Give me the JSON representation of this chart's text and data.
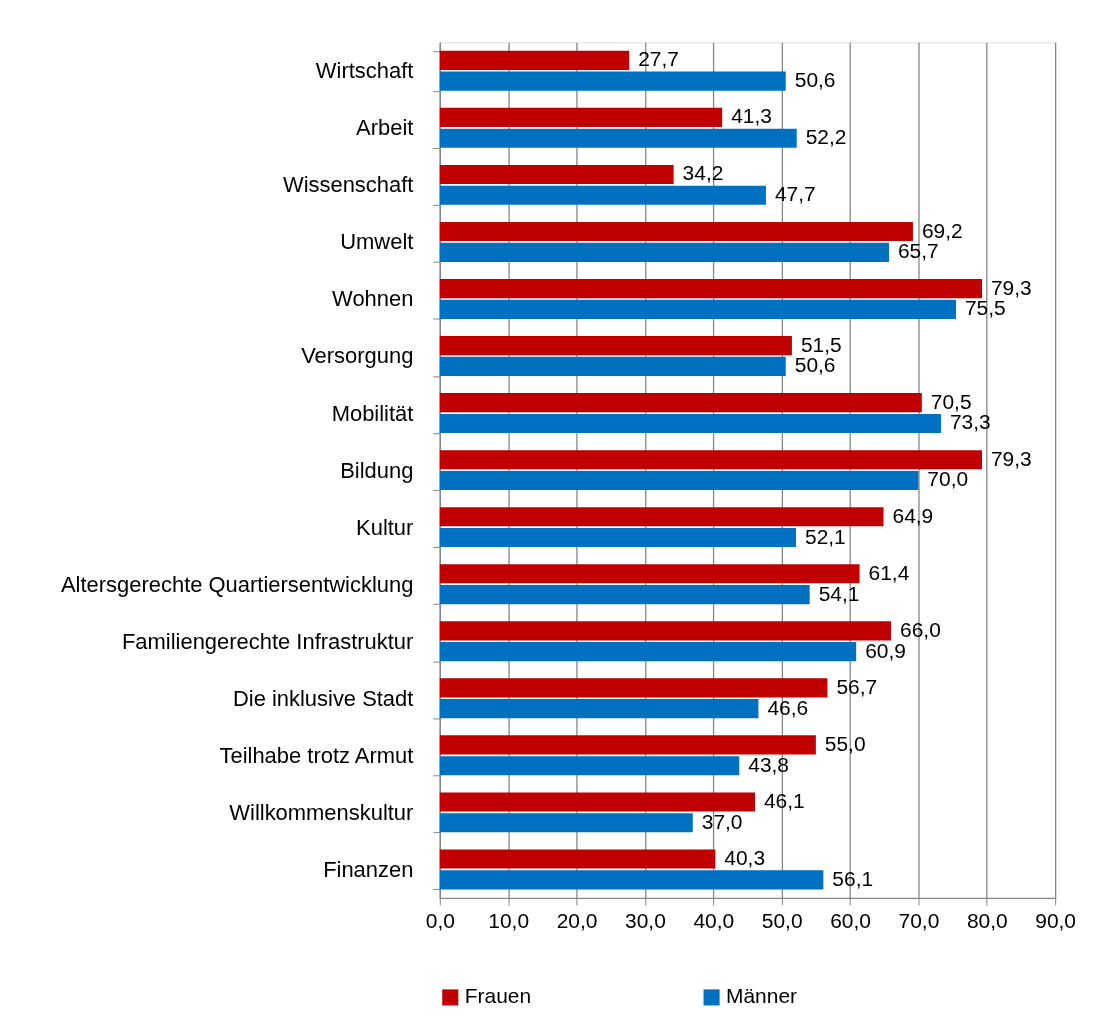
{
  "chart_data": {
    "type": "bar",
    "orientation": "horizontal",
    "categories": [
      "Wirtschaft",
      "Arbeit",
      "Wissenschaft",
      "Umwelt",
      "Wohnen",
      "Versorgung",
      "Mobilität",
      "Bildung",
      "Kultur",
      "Altersgerechte Quartiersentwicklung",
      "Familiengerechte Infrastruktur",
      "Die inklusive Stadt",
      "Teilhabe trotz Armut",
      "Willkommenskultur",
      "Finanzen"
    ],
    "series": [
      {
        "name": "Frauen",
        "color": "#c00000",
        "values": [
          27.7,
          41.3,
          34.2,
          69.2,
          79.3,
          51.5,
          70.5,
          79.3,
          64.9,
          61.4,
          66.0,
          56.7,
          55.0,
          46.1,
          40.3
        ],
        "value_labels": [
          "27,7",
          "41,3",
          "34,2",
          "69,2",
          "79,3",
          "51,5",
          "70,5",
          "79,3",
          "64,9",
          "61,4",
          "66,0",
          "56,7",
          "55,0",
          "46,1",
          "40,3"
        ]
      },
      {
        "name": "Männer",
        "color": "#0070c0",
        "values": [
          50.6,
          52.2,
          47.7,
          65.7,
          75.5,
          50.6,
          73.3,
          70.0,
          52.1,
          54.1,
          60.9,
          46.6,
          43.8,
          37.0,
          56.1
        ],
        "value_labels": [
          "50,6",
          "52,2",
          "47,7",
          "65,7",
          "75,5",
          "50,6",
          "73,3",
          "70,0",
          "52,1",
          "54,1",
          "60,9",
          "46,6",
          "43,8",
          "37,0",
          "56,1"
        ]
      }
    ],
    "xlim": [
      0,
      90
    ],
    "xticks": [
      {
        "value": 0,
        "label": "0,0"
      },
      {
        "value": 10,
        "label": "10,0"
      },
      {
        "value": 20,
        "label": "20,0"
      },
      {
        "value": 30,
        "label": "30,0"
      },
      {
        "value": 40,
        "label": "40,0"
      },
      {
        "value": 50,
        "label": "50,0"
      },
      {
        "value": 60,
        "label": "60,0"
      },
      {
        "value": 70,
        "label": "70,0"
      },
      {
        "value": 80,
        "label": "80,0"
      },
      {
        "value": 90,
        "label": "90,0"
      }
    ],
    "grid": "x",
    "legend": "bottom"
  }
}
